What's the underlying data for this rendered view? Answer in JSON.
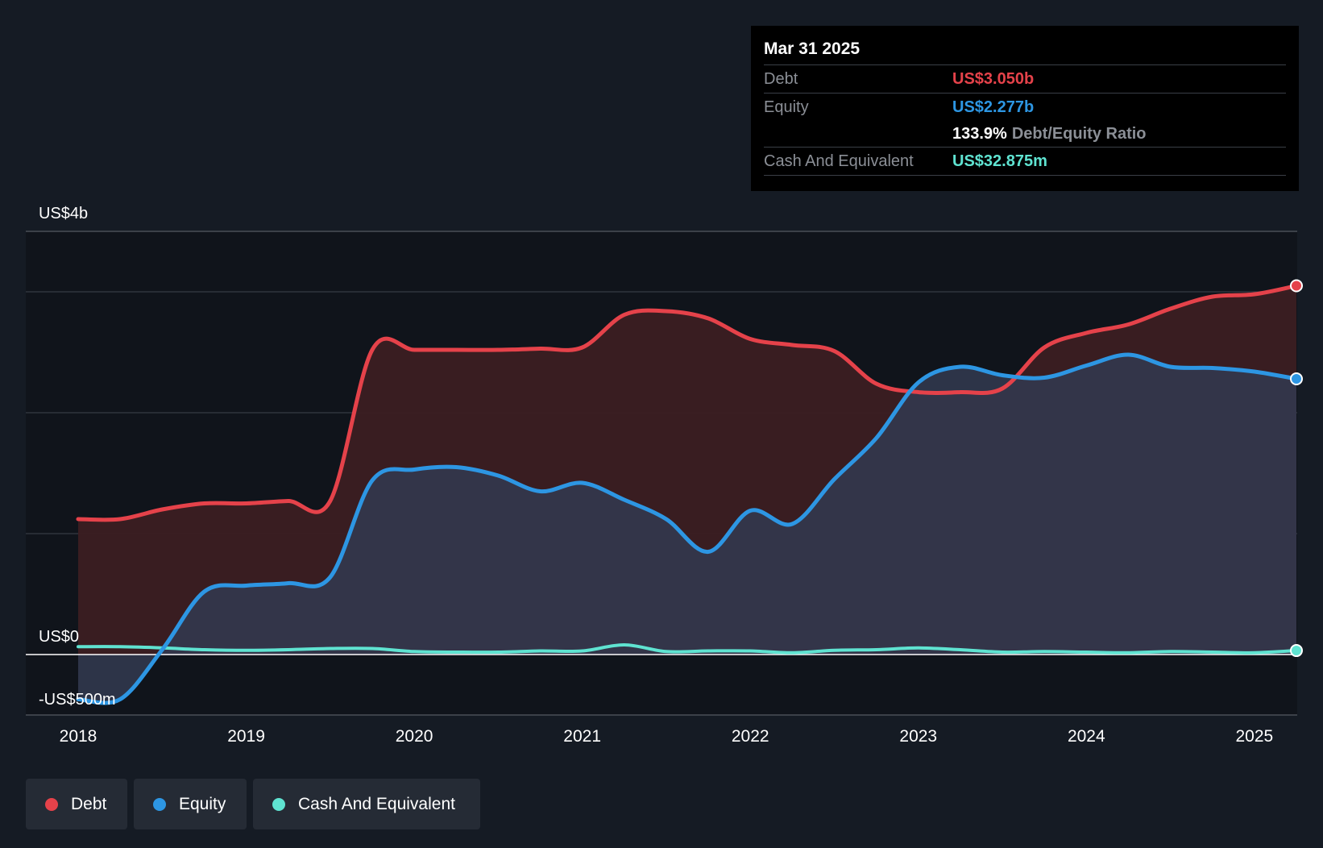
{
  "colors": {
    "background": "#151b24",
    "plot_background": "#10141b",
    "debt": "#e5424a",
    "debt_fill": "#3c1d22",
    "equity": "#2d96e3",
    "equity_fill": "#323a50",
    "cash": "#5fe3d1",
    "grid": "#353a43",
    "text": "#ffffff"
  },
  "tooltip": {
    "date": "Mar 31 2025",
    "debt_label": "Debt",
    "debt_value": "US$3.050b",
    "equity_label": "Equity",
    "equity_value": "US$2.277b",
    "ratio_value": "133.9%",
    "ratio_label": "Debt/Equity Ratio",
    "cash_label": "Cash And Equivalent",
    "cash_value": "US$32.875m"
  },
  "legend": [
    {
      "label": "Debt",
      "color": "#e5424a"
    },
    {
      "label": "Equity",
      "color": "#2d96e3"
    },
    {
      "label": "Cash And Equivalent",
      "color": "#5fe3d1"
    }
  ],
  "chart_data": {
    "type": "area",
    "title": "",
    "xlabel": "",
    "ylabel": "",
    "units": "US$ billions",
    "ylim": [
      -0.5,
      3.5
    ],
    "y_axis_labels": [
      {
        "value": 3.5,
        "label": "US$4b"
      },
      {
        "value": 0,
        "label": "US$0"
      },
      {
        "value": -0.5,
        "label": "-US$500m"
      }
    ],
    "gridlines": [
      3.0,
      2.0,
      1.0
    ],
    "xlim": [
      2018.0,
      2025.25
    ],
    "x_ticks": [
      2018,
      2019,
      2020,
      2021,
      2022,
      2023,
      2024,
      2025
    ],
    "x_tick_labels": [
      "2018",
      "2019",
      "2020",
      "2021",
      "2022",
      "2023",
      "2024",
      "2025"
    ],
    "series": [
      {
        "name": "Debt",
        "x": [
          2018.0,
          2018.25,
          2018.5,
          2018.75,
          2019.0,
          2019.25,
          2019.5,
          2019.75,
          2020.0,
          2020.25,
          2020.5,
          2020.75,
          2021.0,
          2021.25,
          2021.5,
          2021.75,
          2022.0,
          2022.25,
          2022.5,
          2022.75,
          2023.0,
          2023.25,
          2023.5,
          2023.75,
          2024.0,
          2024.25,
          2024.5,
          2024.75,
          2025.0,
          2025.25
        ],
        "values": [
          1.12,
          1.12,
          1.2,
          1.25,
          1.25,
          1.27,
          1.27,
          2.52,
          2.52,
          2.52,
          2.52,
          2.53,
          2.54,
          2.81,
          2.84,
          2.78,
          2.61,
          2.56,
          2.51,
          2.24,
          2.17,
          2.17,
          2.2,
          2.54,
          2.66,
          2.73,
          2.86,
          2.96,
          2.98,
          3.05
        ]
      },
      {
        "name": "Equity",
        "x": [
          2018.0,
          2018.25,
          2018.5,
          2018.75,
          2019.0,
          2019.25,
          2019.5,
          2019.75,
          2020.0,
          2020.25,
          2020.5,
          2020.75,
          2021.0,
          2021.25,
          2021.5,
          2021.75,
          2022.0,
          2022.25,
          2022.5,
          2022.75,
          2023.0,
          2023.25,
          2023.5,
          2023.75,
          2024.0,
          2024.25,
          2024.5,
          2024.75,
          2025.0,
          2025.25
        ],
        "values": [
          -0.37,
          -0.37,
          0.04,
          0.52,
          0.57,
          0.59,
          0.64,
          1.44,
          1.53,
          1.55,
          1.48,
          1.35,
          1.42,
          1.28,
          1.12,
          0.85,
          1.19,
          1.08,
          1.45,
          1.79,
          2.25,
          2.38,
          2.31,
          2.29,
          2.39,
          2.48,
          2.38,
          2.37,
          2.34,
          2.28
        ]
      },
      {
        "name": "Cash And Equivalent",
        "x": [
          2018.0,
          2018.25,
          2018.5,
          2018.75,
          2019.0,
          2019.25,
          2019.5,
          2019.75,
          2020.0,
          2020.25,
          2020.5,
          2020.75,
          2021.0,
          2021.25,
          2021.5,
          2021.75,
          2022.0,
          2022.25,
          2022.5,
          2022.75,
          2023.0,
          2023.25,
          2023.5,
          2023.75,
          2024.0,
          2024.25,
          2024.5,
          2024.75,
          2025.0,
          2025.25
        ],
        "values": [
          0.065,
          0.065,
          0.055,
          0.04,
          0.035,
          0.04,
          0.05,
          0.05,
          0.025,
          0.02,
          0.02,
          0.03,
          0.03,
          0.08,
          0.025,
          0.03,
          0.03,
          0.015,
          0.035,
          0.04,
          0.055,
          0.04,
          0.02,
          0.025,
          0.02,
          0.015,
          0.025,
          0.02,
          0.015,
          0.033
        ]
      }
    ]
  }
}
